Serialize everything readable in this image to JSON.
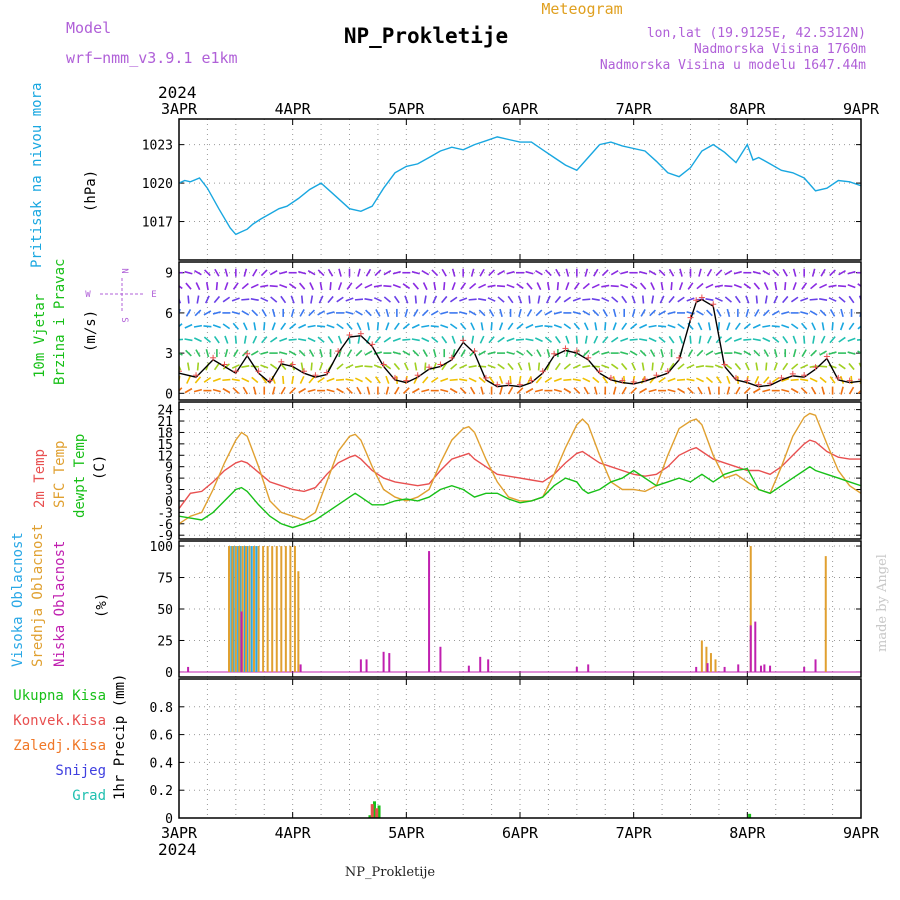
{
  "header": {
    "model_label": "Model",
    "model_value": "wrf−nmm_v3.9.1  e1km",
    "title": "NP_Prokletije",
    "meteogram": "Meteogram",
    "lonlat": "lon,lat (19.9125E, 42.5312N)",
    "elevation": "Nadmorska Visina 1760m",
    "model_elevation": "Nadmorska Visina u modelu 1647.44m",
    "footer_title": "NP_Prokletije",
    "watermark": "made by Angel"
  },
  "colors": {
    "pressure": "#19a7e0",
    "wind_speed": "#000000",
    "t2m": "#e85050",
    "sfc": "#e0a030",
    "dewpt": "#18c018",
    "cloud_high": "#2aa8e6",
    "cloud_mid": "#e0a030",
    "cloud_low": "#c020b0",
    "precip_total": "#18c018",
    "precip_conv": "#e85050",
    "precip_frozen": "#f07828",
    "precip_snow": "#4040e0",
    "precip_hail": "#20c0b0",
    "header_purple": "#b060d8",
    "header_orange": "#e0a020"
  },
  "time_axis": {
    "year": "2024",
    "days": [
      "3APR",
      "4APR",
      "5APR",
      "6APR",
      "7APR",
      "8APR",
      "9APR"
    ]
  },
  "chart_data": [
    {
      "type": "line",
      "panel": "pressure",
      "ylabel_outer": "Pritisak na nivou mora",
      "ylabel_inner": "(hPa)",
      "ylim": [
        1014,
        1025
      ],
      "yticks": [
        1017,
        1020,
        1023
      ],
      "x_unit": "days since 3APR 00UTC",
      "x": [
        0,
        0.05,
        0.1,
        0.18,
        0.25,
        0.35,
        0.45,
        0.5,
        0.55,
        0.6,
        0.65,
        0.72,
        0.8,
        0.88,
        0.95,
        1.05,
        1.15,
        1.25,
        1.35,
        1.5,
        1.6,
        1.7,
        1.8,
        1.9,
        2.0,
        2.1,
        2.2,
        2.3,
        2.4,
        2.5,
        2.6,
        2.7,
        2.8,
        2.9,
        3.0,
        3.1,
        3.2,
        3.3,
        3.4,
        3.5,
        3.6,
        3.7,
        3.8,
        3.9,
        4.0,
        4.1,
        4.2,
        4.3,
        4.4,
        4.5,
        4.6,
        4.7,
        4.8,
        4.9,
        5.0,
        5.05,
        5.1,
        5.2,
        5.3,
        5.4,
        5.5,
        5.6,
        5.7,
        5.8,
        5.9,
        6.0
      ],
      "series": [
        {
          "name": "",
          "values": [
            1020.0,
            1020.2,
            1020.1,
            1020.4,
            1019.6,
            1018.0,
            1016.5,
            1016.0,
            1016.2,
            1016.4,
            1016.8,
            1017.2,
            1017.6,
            1018.0,
            1018.2,
            1018.8,
            1019.5,
            1020.0,
            1019.2,
            1018.0,
            1017.8,
            1018.2,
            1019.6,
            1020.8,
            1021.3,
            1021.5,
            1022.0,
            1022.5,
            1022.8,
            1022.6,
            1023.0,
            1023.3,
            1023.6,
            1023.4,
            1023.2,
            1023.2,
            1022.6,
            1022.0,
            1021.4,
            1021.0,
            1022.0,
            1023.0,
            1023.2,
            1022.9,
            1022.7,
            1022.5,
            1021.7,
            1020.8,
            1020.5,
            1021.2,
            1022.5,
            1023.0,
            1022.4,
            1021.6,
            1023.0,
            1021.8,
            1022.0,
            1021.5,
            1021.0,
            1020.8,
            1020.4,
            1019.4,
            1019.6,
            1020.2,
            1020.1,
            1019.8
          ]
        }
      ]
    },
    {
      "type": "line",
      "panel": "wind",
      "ylabel_outer": "10m Vjetar",
      "ylabel_outer2": "Brzina i Pravac",
      "ylabel_inner": "(m/s)",
      "compass": {
        "n": "N",
        "s": "S",
        "e": "E",
        "w": "W"
      },
      "ylim": [
        -0.5,
        9.8
      ],
      "yticks": [
        0,
        3,
        6,
        9
      ],
      "x_unit": "days since 3APR 00UTC",
      "x": [
        0,
        0.15,
        0.3,
        0.4,
        0.5,
        0.6,
        0.7,
        0.8,
        0.9,
        1.0,
        1.1,
        1.2,
        1.3,
        1.4,
        1.5,
        1.6,
        1.7,
        1.8,
        1.9,
        2.0,
        2.1,
        2.2,
        2.3,
        2.4,
        2.5,
        2.6,
        2.7,
        2.8,
        2.9,
        3.0,
        3.1,
        3.2,
        3.3,
        3.4,
        3.5,
        3.6,
        3.7,
        3.8,
        3.9,
        4.0,
        4.1,
        4.2,
        4.3,
        4.4,
        4.5,
        4.55,
        4.6,
        4.7,
        4.8,
        4.9,
        5.0,
        5.1,
        5.2,
        5.3,
        5.4,
        5.5,
        5.6,
        5.7,
        5.8,
        5.9,
        6.0
      ],
      "series": [
        {
          "name": "",
          "values": [
            1.5,
            1.2,
            2.5,
            2.0,
            1.5,
            2.8,
            1.5,
            0.8,
            2.2,
            2.0,
            1.5,
            1.2,
            1.4,
            3.0,
            4.2,
            4.3,
            3.5,
            2.0,
            1.0,
            0.8,
            1.2,
            1.8,
            2.0,
            2.5,
            3.8,
            3.0,
            1.0,
            0.5,
            0.6,
            0.5,
            0.8,
            1.5,
            2.8,
            3.2,
            3.0,
            2.5,
            1.5,
            1.0,
            0.8,
            0.7,
            0.9,
            1.2,
            1.5,
            2.5,
            5.5,
            6.8,
            7.0,
            6.5,
            2.0,
            1.0,
            0.8,
            0.5,
            0.6,
            1.0,
            1.3,
            1.2,
            1.8,
            2.6,
            1.0,
            0.8,
            0.9
          ]
        }
      ]
    },
    {
      "type": "line",
      "panel": "temperature",
      "ylabel_outer": "2m Temp",
      "ylabel_outer2": "SFC Temp",
      "ylabel_outer3": "dewpt Temp",
      "ylabel_inner": "(C)",
      "ylim": [
        -10,
        26
      ],
      "yticks": [
        -9,
        -6,
        -3,
        0,
        3,
        6,
        9,
        12,
        15,
        18,
        21,
        24
      ],
      "x_unit": "days since 3APR 00UTC",
      "x": [
        0,
        0.1,
        0.2,
        0.3,
        0.4,
        0.5,
        0.55,
        0.6,
        0.7,
        0.8,
        0.9,
        1.0,
        1.1,
        1.2,
        1.3,
        1.4,
        1.5,
        1.55,
        1.6,
        1.7,
        1.8,
        1.9,
        2.0,
        2.1,
        2.2,
        2.3,
        2.4,
        2.5,
        2.55,
        2.6,
        2.7,
        2.8,
        2.9,
        3.0,
        3.1,
        3.2,
        3.3,
        3.4,
        3.5,
        3.55,
        3.6,
        3.7,
        3.8,
        3.9,
        4.0,
        4.1,
        4.2,
        4.3,
        4.4,
        4.5,
        4.55,
        4.6,
        4.7,
        4.8,
        4.9,
        5.0,
        5.1,
        5.2,
        5.3,
        5.4,
        5.5,
        5.55,
        5.6,
        5.7,
        5.8,
        5.9,
        6.0
      ],
      "series": [
        {
          "name": "",
          "values": [
            -2,
            2,
            2.5,
            5,
            8,
            10,
            10.5,
            10,
            7.5,
            5,
            4,
            3,
            2.5,
            3.5,
            7,
            10,
            11.5,
            12,
            11,
            8,
            6,
            5,
            4.5,
            4,
            4.5,
            8,
            11,
            12,
            12.5,
            11,
            9,
            7,
            6.5,
            6,
            5.5,
            5,
            7,
            10,
            12.5,
            13,
            12,
            10,
            9,
            8,
            7,
            6.5,
            7,
            9,
            12,
            13.5,
            14,
            13,
            11,
            10,
            9,
            8,
            8,
            7,
            9,
            12,
            15,
            16,
            15.5,
            13,
            11.5,
            11,
            11
          ]
        },
        {
          "name": "",
          "values": [
            -6,
            -4,
            -3,
            3,
            10,
            16,
            18,
            17,
            9,
            0,
            -3,
            -4,
            -5,
            -3,
            5,
            13,
            17,
            17.5,
            16,
            9,
            3,
            1,
            0,
            1,
            3,
            10,
            16,
            19,
            19.5,
            18,
            11,
            5,
            1,
            0,
            0,
            1,
            7,
            14,
            20,
            21.5,
            20,
            12,
            5,
            3,
            3,
            2.5,
            4,
            12,
            19,
            21,
            21.5,
            20,
            12,
            6,
            7,
            5,
            3,
            2,
            9,
            17,
            22,
            23,
            22.5,
            15,
            8,
            4,
            2
          ]
        },
        {
          "name": "",
          "values": [
            -4,
            -4.5,
            -5,
            -3,
            0,
            3,
            3.5,
            2.5,
            -1,
            -4,
            -6,
            -7,
            -6,
            -5,
            -3,
            -1,
            1,
            2,
            1,
            -1,
            -1,
            0,
            0.5,
            0,
            1,
            3,
            4,
            3,
            2,
            1,
            2,
            2,
            0.5,
            -0.5,
            0,
            1,
            4,
            6,
            5,
            3,
            2,
            3,
            5,
            6,
            8,
            6,
            4,
            5,
            6,
            5,
            6,
            7,
            5,
            7,
            8,
            8.5,
            3,
            2,
            4,
            6,
            8,
            9,
            8,
            7,
            6,
            5,
            4
          ]
        }
      ]
    },
    {
      "type": "bar",
      "panel": "clouds",
      "ylabel_outer": "Visoka Oblacnost",
      "ylabel_outer2": "Srednja Oblacnost",
      "ylabel_outer3": "Niska Oblacnost",
      "ylabel_inner": "(%)",
      "ylim": [
        -4,
        104
      ],
      "yticks": [
        0,
        25,
        50,
        75,
        100
      ],
      "x_unit": "days since 3APR 00UTC",
      "series": [
        {
          "name": "",
          "x": [
            0.46,
            0.48,
            0.5,
            0.52,
            0.54,
            0.56,
            0.58,
            0.6,
            0.62,
            0.64,
            0.66,
            0.68,
            0.7
          ],
          "values": [
            100,
            100,
            100,
            100,
            100,
            100,
            100,
            100,
            100,
            100,
            100,
            100,
            100
          ]
        },
        {
          "name": "",
          "x": [
            0.44,
            0.47,
            0.5,
            0.53,
            0.56,
            0.59,
            0.62,
            0.66,
            0.7,
            0.74,
            0.78,
            0.82,
            0.86,
            0.9,
            0.94,
            0.98,
            1.02,
            1.05,
            4.6,
            4.64,
            4.68,
            4.72,
            5.03,
            5.69
          ],
          "values": [
            100,
            100,
            100,
            100,
            100,
            100,
            100,
            100,
            100,
            100,
            100,
            100,
            100,
            100,
            100,
            100,
            100,
            80,
            25,
            20,
            15,
            10,
            100,
            92
          ]
        },
        {
          "name": "",
          "x": [
            0.08,
            0.55,
            1.07,
            1.6,
            1.65,
            1.8,
            1.85,
            2.2,
            2.3,
            2.55,
            2.65,
            2.72,
            3.5,
            3.6,
            4.55,
            4.65,
            4.8,
            4.92,
            5.03,
            5.07,
            5.12,
            5.15,
            5.2,
            5.5,
            5.6
          ],
          "values": [
            4,
            48,
            6,
            10,
            10,
            16,
            15,
            96,
            20,
            5,
            12,
            10,
            4,
            6,
            4,
            7,
            4,
            6,
            37,
            40,
            5,
            6,
            5,
            4,
            10
          ]
        }
      ]
    },
    {
      "type": "bar",
      "panel": "precip",
      "legend": [
        "Ukupna Kisa",
        "Konvek.Kisa",
        "Zaledj.Kisa",
        "Snijeg",
        "Grad"
      ],
      "ylabel_inner": "1hr Precip (mm)",
      "ylim": [
        0,
        1.0
      ],
      "yticks": [
        0,
        0.2,
        0.4,
        0.6,
        0.8
      ],
      "x_unit": "days since 3APR 00UTC",
      "series": [
        {
          "name": "Ukupna Kisa",
          "x": [
            1.68,
            1.72,
            1.76,
            5.02
          ],
          "values": [
            0.02,
            0.12,
            0.09,
            0.03
          ]
        },
        {
          "name": "Konvek.Kisa",
          "x": [
            1.7,
            1.74
          ],
          "values": [
            0.1,
            0.07
          ]
        }
      ]
    }
  ]
}
